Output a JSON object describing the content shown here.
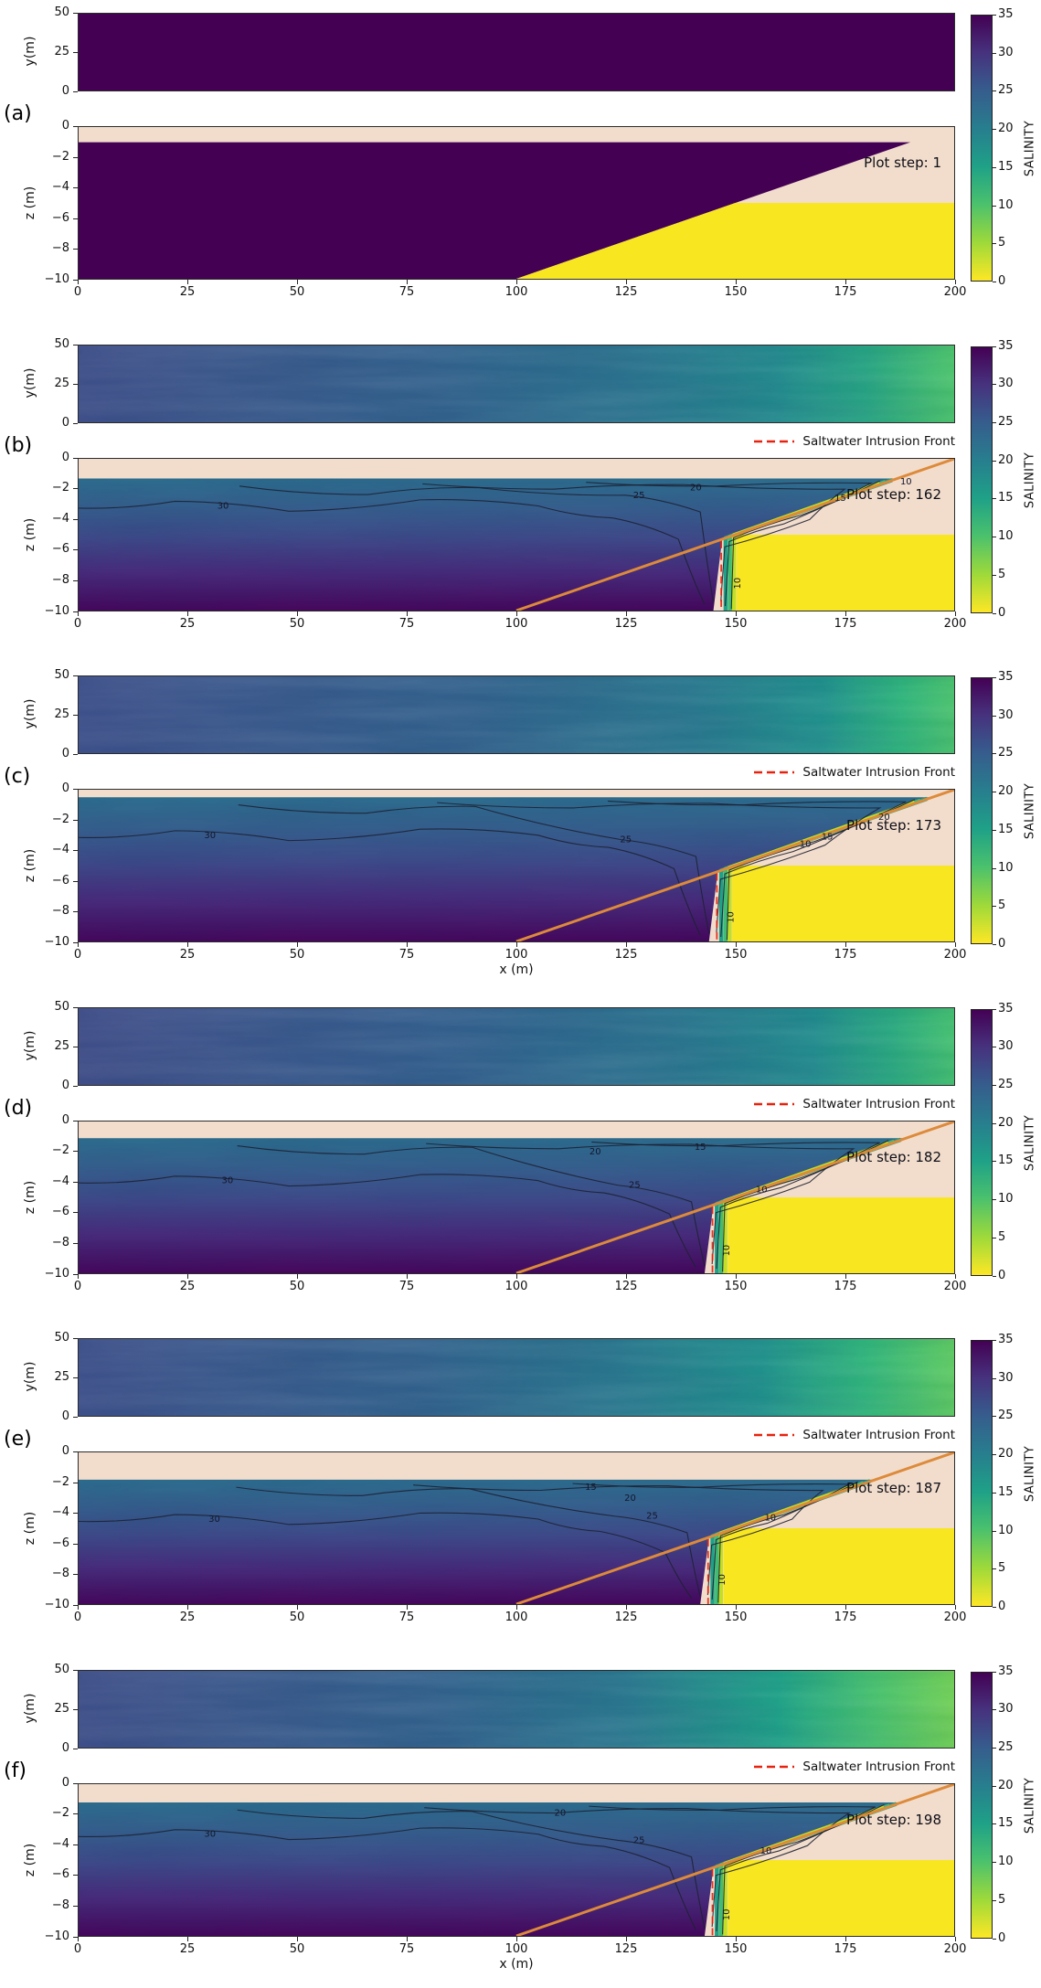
{
  "chart_data": {
    "type": "heatmap",
    "description": "Salinity distribution at successive plot steps: plan view (y vs x) and vertical cross-section (z vs x) with beach face and saltwater intrusion front",
    "x_label": "x (m)",
    "x_range": [
      0,
      200
    ],
    "x_ticks": [
      0,
      25,
      50,
      75,
      100,
      125,
      150,
      175,
      200
    ],
    "plan_view": {
      "y_label": "y(m)",
      "y_range": [
        0,
        50
      ],
      "y_ticks": [
        50,
        25,
        0
      ]
    },
    "cross_section": {
      "z_label": "z (m)",
      "z_range": [
        -10,
        0
      ],
      "z_tick_labels": [
        "0",
        "−2",
        "−4",
        "−6",
        "−8",
        "−10"
      ],
      "z_tick_values": [
        0,
        -2,
        -4,
        -6,
        -8,
        -10
      ]
    },
    "colorbar": {
      "label": "SALINITY",
      "range": [
        0,
        35
      ],
      "ticks": [
        35,
        30,
        25,
        20,
        15,
        10,
        5,
        0
      ],
      "colormap": "viridis reversed",
      "color_top": "#440154",
      "color_bottom": "#fde725"
    },
    "legend": {
      "label": "Saltwater Intrusion Front",
      "line_color": "#e8220f",
      "line_style": "dashed"
    },
    "beach_face_line": {
      "from": [
        100,
        -10
      ],
      "to": [
        200,
        0
      ],
      "color": "#dd8a3a"
    },
    "panels": [
      {
        "label": "(a)",
        "plot_step": 1,
        "plot_step_text": "Plot step: 1",
        "has_legend": false,
        "show_x_label": false,
        "front_x": null,
        "water_table_z": -1.0,
        "contour_labels": []
      },
      {
        "label": "(b)",
        "plot_step": 162,
        "plot_step_text": "Plot step: 162",
        "has_legend": true,
        "show_x_label": false,
        "front_x": 147,
        "water_table_z": -1.3,
        "contour_labels": [
          {
            "value": "30",
            "x": 33,
            "z": -3.1
          },
          {
            "value": "25",
            "x": 128,
            "z": -2.4
          },
          {
            "value": "20",
            "x": 141,
            "z": -1.9
          },
          {
            "value": "15",
            "x": 174,
            "z": -2.6
          },
          {
            "value": "10",
            "x": 189,
            "z": -1.5
          },
          {
            "value": "10",
            "x": 150.5,
            "z": -8.2,
            "rotated": true
          }
        ]
      },
      {
        "label": "(c)",
        "plot_step": 173,
        "plot_step_text": "Plot step: 173",
        "has_legend": true,
        "show_x_label": true,
        "front_x": 146,
        "water_table_z": -0.5,
        "contour_labels": [
          {
            "value": "30",
            "x": 30,
            "z": -3.0
          },
          {
            "value": "25",
            "x": 125,
            "z": -3.3
          },
          {
            "value": "20",
            "x": 184,
            "z": -1.8
          },
          {
            "value": "15",
            "x": 171,
            "z": -3.1
          },
          {
            "value": "10",
            "x": 166,
            "z": -3.6
          },
          {
            "value": "10",
            "x": 149,
            "z": -8.4,
            "rotated": true
          }
        ]
      },
      {
        "label": "(d)",
        "plot_step": 182,
        "plot_step_text": "Plot step: 182",
        "has_legend": true,
        "show_x_label": false,
        "front_x": 145,
        "water_table_z": -1.1,
        "contour_labels": [
          {
            "value": "30",
            "x": 34,
            "z": -3.9
          },
          {
            "value": "25",
            "x": 127,
            "z": -4.2
          },
          {
            "value": "20",
            "x": 118,
            "z": -2.0
          },
          {
            "value": "15",
            "x": 142,
            "z": -1.7
          },
          {
            "value": "10",
            "x": 156,
            "z": -4.5
          },
          {
            "value": "10",
            "x": 148,
            "z": -8.5,
            "rotated": true
          }
        ]
      },
      {
        "label": "(e)",
        "plot_step": 187,
        "plot_step_text": "Plot step: 187",
        "has_legend": true,
        "show_x_label": false,
        "front_x": 144,
        "water_table_z": -1.8,
        "contour_labels": [
          {
            "value": "30",
            "x": 31,
            "z": -4.4
          },
          {
            "value": "25",
            "x": 131,
            "z": -4.2
          },
          {
            "value": "20",
            "x": 126,
            "z": -3.0
          },
          {
            "value": "15",
            "x": 117,
            "z": -2.3
          },
          {
            "value": "10",
            "x": 158,
            "z": -4.3
          },
          {
            "value": "10",
            "x": 147,
            "z": -8.4,
            "rotated": true
          }
        ]
      },
      {
        "label": "(f)",
        "plot_step": 198,
        "plot_step_text": "Plot step: 198",
        "has_legend": true,
        "show_x_label": true,
        "front_x": 145,
        "water_table_z": -1.2,
        "contour_labels": [
          {
            "value": "30",
            "x": 30,
            "z": -3.3
          },
          {
            "value": "20",
            "x": 110,
            "z": -1.9
          },
          {
            "value": "25",
            "x": 128,
            "z": -3.7
          },
          {
            "value": "10",
            "x": 157,
            "z": -4.4
          },
          {
            "value": "10",
            "x": 148,
            "z": -8.6,
            "rotated": true
          }
        ]
      }
    ]
  }
}
